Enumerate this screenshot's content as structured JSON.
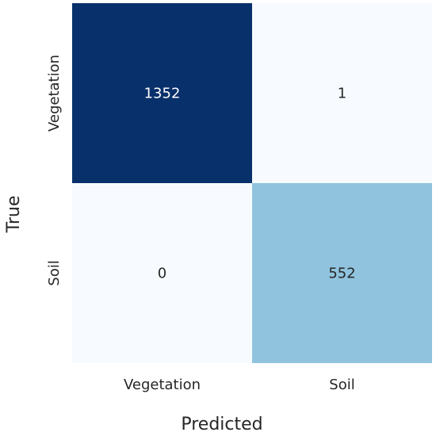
{
  "chart_data": {
    "type": "heatmap",
    "xlabel": "Predicted",
    "ylabel": "True",
    "x_categories": [
      "Vegetation",
      "Soil"
    ],
    "y_categories": [
      "Vegetation",
      "Soil"
    ],
    "values": [
      [
        1352,
        1
      ],
      [
        0,
        552
      ]
    ],
    "colormap": "Blues",
    "colors": {
      "low": "#f7fbff",
      "mid": "#7ac4df",
      "high": "#08306b",
      "text_on_light": "#262626",
      "text_on_dark": "#ffffff"
    },
    "colorbar": false,
    "grid": false
  }
}
